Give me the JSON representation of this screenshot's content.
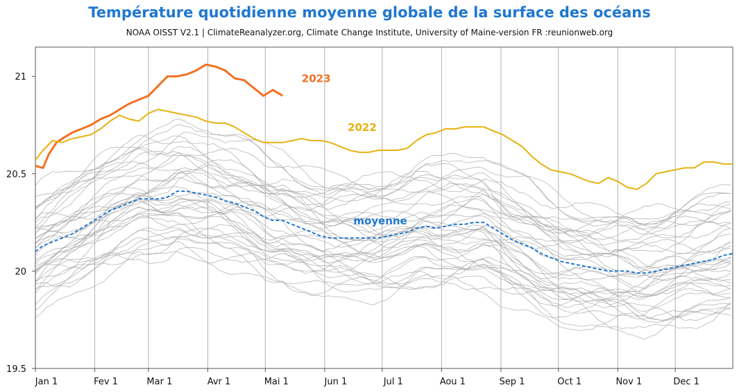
{
  "title": "Température quotidienne moyenne globale de la surface des océans",
  "subtitle": "NOAA OISST V2.1 | ClimateReanalyzer.org, Climate Change Institute, University of Maine-version FR :reunionweb.org",
  "chart_data": {
    "type": "line",
    "title": "Température quotidienne moyenne globale de la surface des océans",
    "xlabel": "",
    "ylabel": "",
    "xlim": [
      1,
      365
    ],
    "ylim": [
      19.5,
      21.15
    ],
    "yticks": [
      19.5,
      20,
      20.5,
      21
    ],
    "ytick_labels": [
      "19.5",
      "20",
      "20.5",
      "21"
    ],
    "xtick_days": [
      1,
      32,
      60,
      91,
      121,
      152,
      182,
      213,
      244,
      274,
      305,
      335
    ],
    "xtick_labels": [
      "Jan 1",
      "Fev 1",
      "Mar 1",
      "Avr 1",
      "Mai 1",
      "Jun 1",
      "Jul 1",
      "Aou 1",
      "Sep 1",
      "Oct 1",
      "Nov 1",
      "Dec 1"
    ],
    "grid": "vertical",
    "series": [
      {
        "name": "2023",
        "color": "#f36f21",
        "style": "solid",
        "width": 3,
        "x": [
          1,
          5,
          8,
          12,
          15,
          20,
          25,
          30,
          35,
          40,
          45,
          50,
          55,
          60,
          65,
          70,
          75,
          80,
          85,
          90,
          95,
          100,
          105,
          110,
          115,
          120,
          125,
          130
        ],
        "y": [
          20.54,
          20.53,
          20.6,
          20.66,
          20.68,
          20.71,
          20.73,
          20.75,
          20.78,
          20.8,
          20.83,
          20.86,
          20.88,
          20.9,
          20.95,
          21.0,
          21.0,
          21.01,
          21.03,
          21.06,
          21.05,
          21.03,
          20.99,
          20.98,
          20.94,
          20.9,
          20.93,
          20.9
        ]
      },
      {
        "name": "2022",
        "color": "#e6b10e",
        "style": "solid",
        "width": 2,
        "x": [
          1,
          5,
          10,
          15,
          20,
          25,
          30,
          35,
          40,
          45,
          50,
          55,
          60,
          65,
          70,
          75,
          80,
          85,
          90,
          95,
          100,
          105,
          110,
          115,
          120,
          125,
          130,
          135,
          140,
          145,
          150,
          155,
          160,
          165,
          170,
          175,
          180,
          185,
          190,
          195,
          200,
          205,
          210,
          215,
          220,
          225,
          230,
          235,
          240,
          245,
          250,
          255,
          260,
          265,
          270,
          275,
          280,
          285,
          290,
          295,
          300,
          305,
          310,
          315,
          320,
          325,
          330,
          335,
          340,
          345,
          350,
          355,
          360,
          365
        ],
        "y": [
          20.57,
          20.62,
          20.67,
          20.66,
          20.68,
          20.69,
          20.7,
          20.73,
          20.77,
          20.8,
          20.78,
          20.77,
          20.81,
          20.83,
          20.82,
          20.81,
          20.8,
          20.79,
          20.77,
          20.76,
          20.76,
          20.74,
          20.71,
          20.68,
          20.66,
          20.66,
          20.66,
          20.67,
          20.68,
          20.67,
          20.67,
          20.66,
          20.64,
          20.62,
          20.61,
          20.61,
          20.62,
          20.62,
          20.62,
          20.63,
          20.67,
          20.7,
          20.71,
          20.73,
          20.73,
          20.74,
          20.74,
          20.74,
          20.72,
          20.7,
          20.67,
          20.64,
          20.59,
          20.55,
          20.52,
          20.51,
          20.5,
          20.48,
          20.46,
          20.45,
          20.48,
          20.46,
          20.43,
          20.42,
          20.45,
          20.5,
          20.51,
          20.52,
          20.53,
          20.53,
          20.56,
          20.56,
          20.55,
          20.55
        ]
      },
      {
        "name": "moyenne",
        "color": "#1f77d0",
        "style": "dashed",
        "width": 2,
        "x": [
          1,
          5,
          10,
          15,
          20,
          25,
          30,
          35,
          40,
          45,
          50,
          55,
          60,
          65,
          70,
          75,
          80,
          85,
          90,
          95,
          100,
          105,
          110,
          115,
          120,
          125,
          130,
          135,
          140,
          145,
          150,
          155,
          160,
          165,
          170,
          175,
          180,
          185,
          190,
          195,
          200,
          205,
          210,
          215,
          220,
          225,
          230,
          235,
          240,
          245,
          250,
          255,
          260,
          265,
          270,
          275,
          280,
          285,
          290,
          295,
          300,
          305,
          310,
          315,
          320,
          325,
          330,
          335,
          340,
          345,
          350,
          355,
          360,
          365
        ],
        "y": [
          20.1,
          20.13,
          20.15,
          20.17,
          20.19,
          20.22,
          20.25,
          20.28,
          20.31,
          20.33,
          20.35,
          20.37,
          20.37,
          20.37,
          20.38,
          20.41,
          20.41,
          20.4,
          20.39,
          20.38,
          20.36,
          20.35,
          20.33,
          20.31,
          20.28,
          20.26,
          20.26,
          20.24,
          20.22,
          20.2,
          20.18,
          20.17,
          20.17,
          20.17,
          20.17,
          20.17,
          20.17,
          20.18,
          20.19,
          20.2,
          20.22,
          20.23,
          20.22,
          20.23,
          20.24,
          20.24,
          20.25,
          20.25,
          20.22,
          20.19,
          20.16,
          20.14,
          20.12,
          20.09,
          20.07,
          20.05,
          20.04,
          20.03,
          20.02,
          20.01,
          20.0,
          20.0,
          20.0,
          19.99,
          19.99,
          20.0,
          20.01,
          20.02,
          20.03,
          20.04,
          20.05,
          20.06,
          20.08,
          20.09
        ]
      }
    ],
    "annotations": [
      {
        "text": "2023",
        "color": "#f36f21",
        "x": 140,
        "y": 20.97
      },
      {
        "text": "2022",
        "color": "#e6b10e",
        "x": 164,
        "y": 20.72
      },
      {
        "text": "moyenne",
        "color": "#1f77d0",
        "x": 167,
        "y": 20.24
      }
    ]
  }
}
